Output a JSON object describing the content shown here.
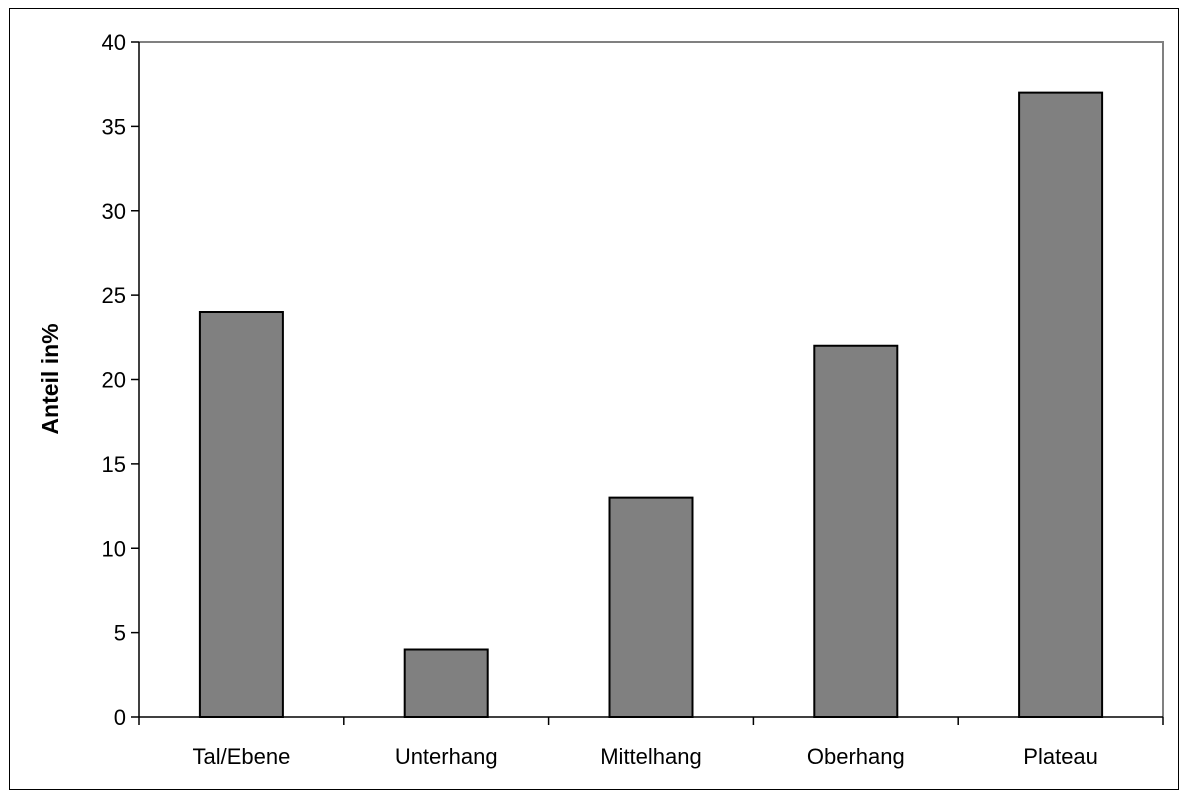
{
  "chart_data": {
    "type": "bar",
    "title": "",
    "xlabel": "",
    "ylabel": "Anteil in%",
    "categories": [
      "Tal/Ebene",
      "Unterhang",
      "Mittelhang",
      "Oberhang",
      "Plateau"
    ],
    "values": [
      24,
      4,
      13,
      22,
      37
    ],
    "ylim": [
      0,
      40
    ],
    "yticks": [
      0,
      5,
      10,
      15,
      20,
      25,
      30,
      35,
      40
    ],
    "ytick_labels": [
      "0",
      "5",
      "10",
      "15",
      "20",
      "25",
      "30",
      "35",
      "40"
    ],
    "grid": false,
    "legend": "none",
    "colors": {
      "bar_fill": "#808080",
      "bar_stroke": "#000000",
      "plot_border": "#808080",
      "axis": "#000000"
    }
  }
}
